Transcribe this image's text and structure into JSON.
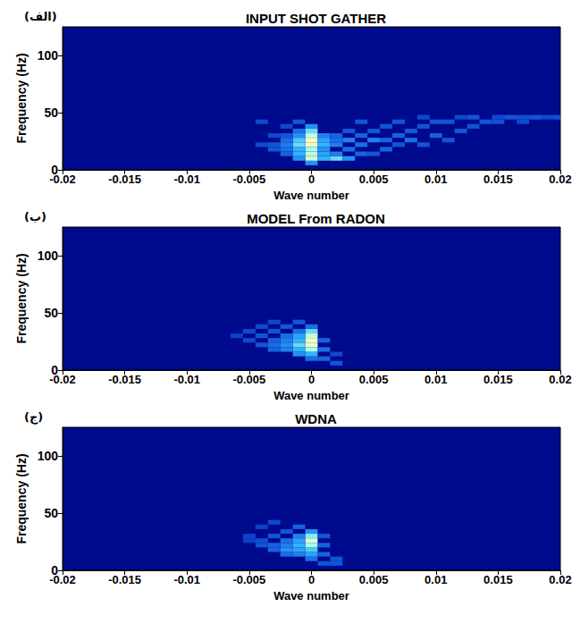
{
  "chart_data": [
    {
      "type": "heatmap",
      "title": "INPUT SHOT GATHER",
      "panel_label": "(الف)",
      "x_label": "Wave number",
      "y_label": "Frequency (Hz)",
      "xlim": [
        -0.02,
        0.02
      ],
      "xticks": [
        -0.02,
        -0.015,
        -0.01,
        -0.005,
        0,
        0.005,
        0.01,
        0.015,
        0.02
      ],
      "ylim": [
        0,
        125
      ],
      "yticks": [
        0,
        50,
        100
      ],
      "grid": false,
      "cell_size": [
        0.001,
        4
      ],
      "zlim": [
        0,
        1
      ],
      "cells": [
        [
          0,
          6,
          0.5
        ],
        [
          0,
          10,
          0.9
        ],
        [
          0,
          14,
          0.85
        ],
        [
          0,
          18,
          0.8
        ],
        [
          0,
          22,
          0.95
        ],
        [
          0,
          26,
          1.0
        ],
        [
          0,
          30,
          0.85
        ],
        [
          0,
          34,
          0.7
        ],
        [
          0,
          38,
          0.5
        ],
        [
          -0.001,
          10,
          0.5
        ],
        [
          -0.001,
          14,
          0.6
        ],
        [
          -0.001,
          18,
          0.6
        ],
        [
          -0.001,
          22,
          0.7
        ],
        [
          -0.001,
          26,
          0.65
        ],
        [
          -0.001,
          30,
          0.5
        ],
        [
          -0.001,
          34,
          0.4
        ],
        [
          -0.001,
          42,
          0.3
        ],
        [
          0.001,
          10,
          0.6
        ],
        [
          0.001,
          14,
          0.55
        ],
        [
          0.001,
          18,
          0.5
        ],
        [
          0.001,
          22,
          0.6
        ],
        [
          0.001,
          26,
          0.55
        ],
        [
          0.001,
          30,
          0.45
        ],
        [
          -0.002,
          14,
          0.35
        ],
        [
          -0.002,
          18,
          0.4
        ],
        [
          -0.002,
          22,
          0.45
        ],
        [
          -0.002,
          26,
          0.4
        ],
        [
          -0.002,
          30,
          0.3
        ],
        [
          -0.002,
          38,
          0.25
        ],
        [
          0.002,
          10,
          0.7
        ],
        [
          0.002,
          14,
          0.45
        ],
        [
          0.002,
          22,
          0.45
        ],
        [
          0.002,
          26,
          0.4
        ],
        [
          0.002,
          30,
          0.35
        ],
        [
          -0.003,
          18,
          0.3
        ],
        [
          -0.003,
          22,
          0.3
        ],
        [
          -0.003,
          30,
          0.25
        ],
        [
          0.003,
          10,
          0.5
        ],
        [
          0.003,
          18,
          0.4
        ],
        [
          0.003,
          26,
          0.45
        ],
        [
          0.003,
          34,
          0.3
        ],
        [
          -0.004,
          22,
          0.25
        ],
        [
          -0.004,
          42,
          0.25
        ],
        [
          0.004,
          14,
          0.35
        ],
        [
          0.004,
          22,
          0.4
        ],
        [
          0.004,
          30,
          0.35
        ],
        [
          0.004,
          42,
          0.3
        ],
        [
          0.005,
          14,
          0.3
        ],
        [
          0.005,
          26,
          0.45
        ],
        [
          0.005,
          34,
          0.3
        ],
        [
          0.006,
          18,
          0.35
        ],
        [
          0.006,
          26,
          0.35
        ],
        [
          0.006,
          38,
          0.3
        ],
        [
          0.007,
          22,
          0.3
        ],
        [
          0.007,
          30,
          0.35
        ],
        [
          0.007,
          42,
          0.3
        ],
        [
          0.008,
          26,
          0.4
        ],
        [
          0.008,
          34,
          0.3
        ],
        [
          0.009,
          22,
          0.3
        ],
        [
          0.009,
          38,
          0.3
        ],
        [
          0.009,
          46,
          0.25
        ],
        [
          0.01,
          30,
          0.35
        ],
        [
          0.01,
          42,
          0.3
        ],
        [
          0.011,
          26,
          0.3
        ],
        [
          0.011,
          42,
          0.3
        ],
        [
          0.012,
          34,
          0.3
        ],
        [
          0.012,
          46,
          0.25
        ],
        [
          0.013,
          38,
          0.3
        ],
        [
          0.013,
          46,
          0.3
        ],
        [
          0.014,
          42,
          0.3
        ],
        [
          0.015,
          42,
          0.28
        ],
        [
          0.015,
          46,
          0.25
        ],
        [
          0.016,
          46,
          0.3
        ],
        [
          0.017,
          42,
          0.25
        ],
        [
          0.017,
          46,
          0.28
        ],
        [
          0.018,
          46,
          0.3
        ],
        [
          0.019,
          46,
          0.25
        ],
        [
          0.02,
          46,
          0.28
        ]
      ]
    },
    {
      "type": "heatmap",
      "title": "MODEL From RADON",
      "panel_label": "(ب)",
      "x_label": "Wave number",
      "y_label": "Frequency (Hz)",
      "xlim": [
        -0.02,
        0.02
      ],
      "xticks": [
        -0.02,
        -0.015,
        -0.01,
        -0.005,
        0,
        0.005,
        0.01,
        0.015,
        0.02
      ],
      "ylim": [
        0,
        125
      ],
      "yticks": [
        0,
        50,
        100
      ],
      "grid": false,
      "cell_size": [
        0.001,
        4
      ],
      "zlim": [
        0,
        1
      ],
      "cells": [
        [
          0,
          10,
          0.4
        ],
        [
          0,
          14,
          0.6
        ],
        [
          0,
          18,
          0.8
        ],
        [
          0,
          22,
          0.95
        ],
        [
          0,
          26,
          1.0
        ],
        [
          0,
          30,
          0.85
        ],
        [
          0,
          34,
          0.7
        ],
        [
          0,
          38,
          0.4
        ],
        [
          -0.001,
          14,
          0.5
        ],
        [
          -0.001,
          18,
          0.6
        ],
        [
          -0.001,
          22,
          0.7
        ],
        [
          -0.001,
          26,
          0.6
        ],
        [
          -0.001,
          30,
          0.55
        ],
        [
          -0.001,
          34,
          0.4
        ],
        [
          -0.001,
          42,
          0.3
        ],
        [
          -0.002,
          18,
          0.45
        ],
        [
          -0.002,
          22,
          0.5
        ],
        [
          -0.002,
          26,
          0.45
        ],
        [
          -0.002,
          30,
          0.4
        ],
        [
          -0.002,
          38,
          0.3
        ],
        [
          -0.003,
          18,
          0.35
        ],
        [
          -0.003,
          22,
          0.4
        ],
        [
          -0.003,
          26,
          0.35
        ],
        [
          -0.003,
          34,
          0.3
        ],
        [
          -0.003,
          42,
          0.25
        ],
        [
          -0.004,
          22,
          0.3
        ],
        [
          -0.004,
          30,
          0.3
        ],
        [
          -0.004,
          38,
          0.25
        ],
        [
          -0.005,
          26,
          0.25
        ],
        [
          -0.005,
          34,
          0.25
        ],
        [
          -0.006,
          30,
          0.22
        ],
        [
          0.001,
          10,
          0.35
        ],
        [
          0.001,
          18,
          0.4
        ],
        [
          0.001,
          26,
          0.35
        ],
        [
          0.002,
          6,
          0.3
        ],
        [
          0.002,
          14,
          0.25
        ]
      ]
    },
    {
      "type": "heatmap",
      "title": "WDNA",
      "panel_label": "(ج)",
      "x_label": "Wave number",
      "y_label": "Frequency (Hz)",
      "xlim": [
        -0.02,
        0.02
      ],
      "xticks": [
        -0.02,
        -0.015,
        -0.01,
        -0.005,
        0,
        0.005,
        0.01,
        0.015,
        0.02
      ],
      "ylim": [
        0,
        125
      ],
      "yticks": [
        0,
        50,
        100
      ],
      "grid": false,
      "cell_size": [
        0.001,
        4
      ],
      "zlim": [
        0,
        1
      ],
      "cells": [
        [
          0,
          10,
          0.4
        ],
        [
          0,
          14,
          0.55
        ],
        [
          0,
          18,
          0.65
        ],
        [
          0,
          22,
          0.8
        ],
        [
          0,
          26,
          0.9
        ],
        [
          0,
          30,
          0.75
        ],
        [
          0,
          34,
          0.5
        ],
        [
          -0.001,
          14,
          0.45
        ],
        [
          -0.001,
          18,
          0.55
        ],
        [
          -0.001,
          22,
          0.6
        ],
        [
          -0.001,
          26,
          0.55
        ],
        [
          -0.001,
          30,
          0.45
        ],
        [
          -0.001,
          38,
          0.35
        ],
        [
          -0.002,
          14,
          0.4
        ],
        [
          -0.002,
          18,
          0.5
        ],
        [
          -0.002,
          22,
          0.45
        ],
        [
          -0.002,
          26,
          0.4
        ],
        [
          -0.002,
          34,
          0.3
        ],
        [
          -0.003,
          18,
          0.35
        ],
        [
          -0.003,
          22,
          0.35
        ],
        [
          -0.003,
          30,
          0.3
        ],
        [
          -0.003,
          42,
          0.25
        ],
        [
          -0.004,
          22,
          0.3
        ],
        [
          -0.004,
          26,
          0.28
        ],
        [
          -0.004,
          38,
          0.22
        ],
        [
          -0.005,
          26,
          0.22
        ],
        [
          -0.005,
          30,
          0.22
        ],
        [
          0.001,
          6,
          0.3
        ],
        [
          0.001,
          14,
          0.35
        ],
        [
          0.001,
          22,
          0.35
        ],
        [
          0.001,
          30,
          0.3
        ],
        [
          0.002,
          6,
          0.3
        ],
        [
          0.002,
          10,
          0.3
        ]
      ]
    }
  ]
}
